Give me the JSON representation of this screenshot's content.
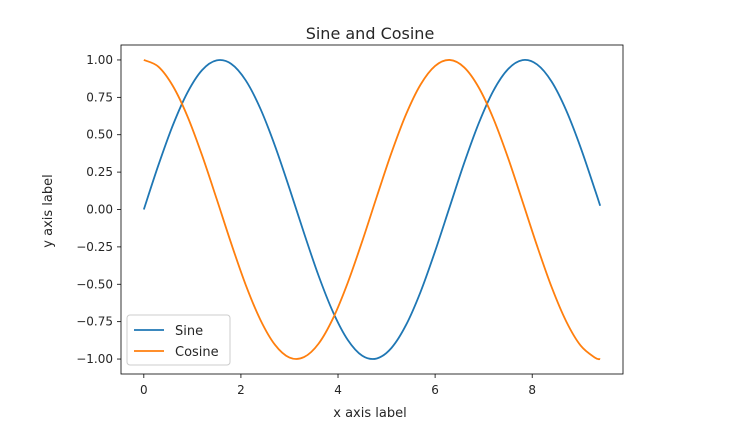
{
  "chart_data": {
    "type": "line",
    "title": "Sine and Cosine",
    "xlabel": "x axis label",
    "ylabel": "y axis label",
    "xlim": [
      -0.47,
      9.87
    ],
    "ylim": [
      -1.1,
      1.1
    ],
    "x_ticks": [
      0,
      2,
      4,
      6,
      8
    ],
    "x_tick_labels": [
      "0",
      "2",
      "4",
      "6",
      "8"
    ],
    "y_ticks": [
      1.0,
      0.75,
      0.5,
      0.25,
      0.0,
      -0.25,
      -0.5,
      -0.75,
      -1.0
    ],
    "y_tick_labels": [
      "1.00",
      "0.75",
      "0.50",
      "0.25",
      "0.00",
      "−0.25",
      "−0.50",
      "−0.75",
      "−1.00"
    ],
    "grid": false,
    "legend_position": "lower-left",
    "x": [
      0,
      0.3,
      0.6,
      0.9,
      1.2,
      1.5,
      1.8,
      2.1,
      2.4,
      2.7,
      3.0,
      3.3,
      3.6,
      3.9,
      4.2,
      4.5,
      4.8,
      5.1,
      5.4,
      5.7,
      6.0,
      6.3,
      6.6,
      6.9,
      7.2,
      7.5,
      7.8,
      8.1,
      8.4,
      8.7,
      9.0,
      9.3,
      9.4
    ],
    "series": [
      {
        "name": "Sine",
        "color": "#1f77b4",
        "values": [
          0.0,
          0.296,
          0.565,
          0.783,
          0.932,
          0.997,
          0.974,
          0.863,
          0.675,
          0.427,
          0.141,
          -0.158,
          -0.443,
          -0.688,
          -0.872,
          -0.978,
          -0.996,
          -0.926,
          -0.773,
          -0.551,
          -0.279,
          0.017,
          0.312,
          0.578,
          0.794,
          0.938,
          0.999,
          0.97,
          0.855,
          0.663,
          0.412,
          0.124,
          0.025
        ]
      },
      {
        "name": "Cosine",
        "color": "#ff7f0e",
        "values": [
          1.0,
          0.955,
          0.825,
          0.622,
          0.362,
          0.071,
          -0.227,
          -0.505,
          -0.737,
          -0.904,
          -0.99,
          -0.987,
          -0.897,
          -0.726,
          -0.49,
          -0.211,
          0.087,
          0.378,
          0.635,
          0.835,
          0.96,
          1.0,
          0.95,
          0.815,
          0.608,
          0.347,
          0.054,
          -0.243,
          -0.519,
          -0.748,
          -0.911,
          -0.992,
          -1.0
        ]
      }
    ]
  }
}
